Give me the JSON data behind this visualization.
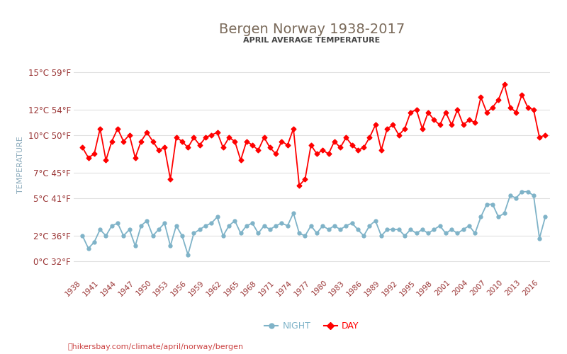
{
  "title": "Bergen Norway 1938-2017",
  "subtitle": "APRIL AVERAGE TEMPERATURE",
  "ylabel": "TEMPERATURE",
  "xlabel_url": "⛳hikersbay.com/climate/april/norway/bergen",
  "years": [
    1938,
    1939,
    1940,
    1941,
    1942,
    1943,
    1944,
    1945,
    1946,
    1947,
    1948,
    1949,
    1950,
    1951,
    1952,
    1953,
    1954,
    1955,
    1956,
    1957,
    1958,
    1959,
    1960,
    1961,
    1962,
    1963,
    1964,
    1965,
    1966,
    1967,
    1968,
    1969,
    1970,
    1971,
    1972,
    1973,
    1974,
    1975,
    1976,
    1977,
    1978,
    1979,
    1980,
    1981,
    1982,
    1983,
    1984,
    1985,
    1986,
    1987,
    1988,
    1989,
    1990,
    1991,
    1992,
    1993,
    1994,
    1995,
    1996,
    1997,
    1998,
    1999,
    2000,
    2001,
    2002,
    2003,
    2004,
    2005,
    2006,
    2007,
    2008,
    2009,
    2010,
    2011,
    2012,
    2013,
    2014,
    2015,
    2016,
    2017
  ],
  "day_temps": [
    9.0,
    8.2,
    8.5,
    10.5,
    8.0,
    9.5,
    10.5,
    9.5,
    10.0,
    8.2,
    9.5,
    10.2,
    9.5,
    8.8,
    9.0,
    6.5,
    9.8,
    9.5,
    9.0,
    9.8,
    9.2,
    9.8,
    10.0,
    10.2,
    9.0,
    9.8,
    9.5,
    8.0,
    9.5,
    9.2,
    8.8,
    9.8,
    9.0,
    8.5,
    9.5,
    9.2,
    10.5,
    6.0,
    6.5,
    9.2,
    8.5,
    8.8,
    8.5,
    9.5,
    9.0,
    9.8,
    9.2,
    8.8,
    9.0,
    9.8,
    10.8,
    8.8,
    10.5,
    10.8,
    10.0,
    10.5,
    11.8,
    12.0,
    10.5,
    11.8,
    11.2,
    10.8,
    11.8,
    10.8,
    12.0,
    10.8,
    11.2,
    11.0,
    13.0,
    11.8,
    12.2,
    12.8,
    14.0,
    12.2,
    11.8,
    13.2,
    12.2,
    12.0,
    9.8,
    10.0
  ],
  "night_temps": [
    2.0,
    1.0,
    1.5,
    2.5,
    2.0,
    2.8,
    3.0,
    2.0,
    2.5,
    1.2,
    2.8,
    3.2,
    2.0,
    2.5,
    3.0,
    1.2,
    2.8,
    2.0,
    0.5,
    2.2,
    2.5,
    2.8,
    3.0,
    3.5,
    2.0,
    2.8,
    3.2,
    2.2,
    2.8,
    3.0,
    2.2,
    2.8,
    2.5,
    2.8,
    3.0,
    2.8,
    3.8,
    2.2,
    2.0,
    2.8,
    2.2,
    2.8,
    2.5,
    2.8,
    2.5,
    2.8,
    3.0,
    2.5,
    2.0,
    2.8,
    3.2,
    2.0,
    2.5,
    2.5,
    2.5,
    2.0,
    2.5,
    2.2,
    2.5,
    2.2,
    2.5,
    2.8,
    2.2,
    2.5,
    2.2,
    2.5,
    2.8,
    2.2,
    3.5,
    4.5,
    4.5,
    3.5,
    3.8,
    5.2,
    5.0,
    5.5,
    5.5,
    5.2,
    1.8,
    3.5
  ],
  "day_color": "#ff0000",
  "night_color": "#7fb3c8",
  "ylim_min": -1.2,
  "ylim_max": 16.5,
  "yticks_celsius": [
    0,
    2,
    5,
    7,
    10,
    12,
    15
  ],
  "yticks_fahrenheit": [
    32,
    36,
    41,
    45,
    50,
    54,
    59
  ],
  "xtick_years": [
    1938,
    1941,
    1944,
    1947,
    1950,
    1953,
    1956,
    1959,
    1962,
    1965,
    1968,
    1971,
    1974,
    1977,
    1980,
    1983,
    1986,
    1989,
    1992,
    1995,
    1998,
    2001,
    2004,
    2007,
    2010,
    2013,
    2016
  ],
  "legend_night": "NIGHT",
  "legend_day": "DAY",
  "title_color": "#7a6a5a",
  "subtitle_color": "#444444",
  "axis_label_color": "#8aaabb",
  "tick_color": "#993333",
  "grid_color": "#e0e0e0",
  "line_width": 1.3,
  "marker_size": 3.5,
  "url_color": "#cc4444"
}
